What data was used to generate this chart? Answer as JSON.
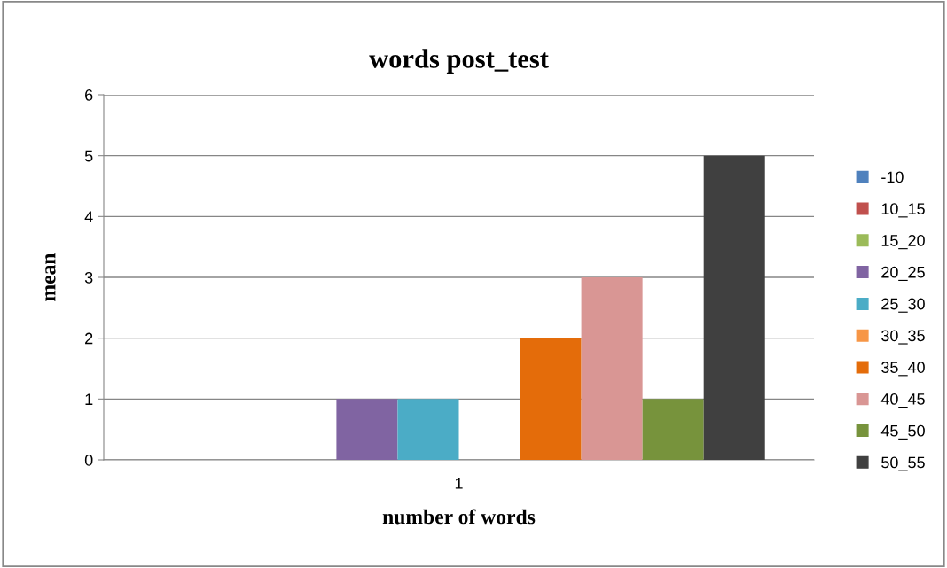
{
  "chart_data": {
    "type": "bar",
    "title": "words post_test",
    "xlabel": "number of words",
    "ylabel": "mean",
    "categories": [
      "1"
    ],
    "series": [
      {
        "name": "-10",
        "color": "#4f81bd",
        "values": [
          0
        ]
      },
      {
        "name": "10_15",
        "color": "#c0504d",
        "values": [
          0
        ]
      },
      {
        "name": "15_20",
        "color": "#9bbb59",
        "values": [
          0
        ]
      },
      {
        "name": "20_25",
        "color": "#8064a2",
        "values": [
          1
        ]
      },
      {
        "name": "25_30",
        "color": "#4bacc6",
        "values": [
          1
        ]
      },
      {
        "name": "30_35",
        "color": "#f79646",
        "values": [
          0
        ]
      },
      {
        "name": "35_40",
        "color": "#e46c0a",
        "values": [
          2
        ]
      },
      {
        "name": "40_45",
        "color": "#d99694",
        "values": [
          3
        ]
      },
      {
        "name": "45_50",
        "color": "#77933c",
        "values": [
          1
        ]
      },
      {
        "name": "50_55",
        "color": "#404040",
        "values": [
          5
        ]
      }
    ],
    "ylim": [
      0,
      6
    ],
    "yticks": [
      0,
      1,
      2,
      3,
      4,
      5,
      6
    ],
    "grid": "y",
    "legend": "right"
  }
}
